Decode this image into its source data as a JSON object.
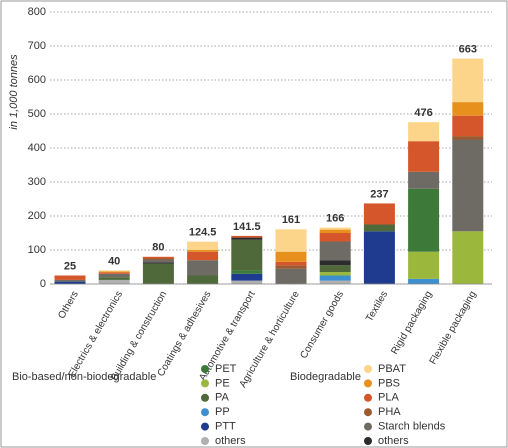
{
  "chart_data": {
    "type": "stacked-bar",
    "y_label": "in 1,000 tonnes",
    "categories": [
      "Others",
      "Electrics & electronics",
      "Building & construction",
      "Coatings & adhesives",
      "Automotive & transport",
      "Agriculture & horticulture",
      "Consumer goods",
      "Textiles",
      "Rigid packaging",
      "Flexible packaging"
    ],
    "totals": [
      25,
      40,
      80,
      124.5,
      141.5,
      161,
      166,
      237,
      476,
      663
    ],
    "ylim": [
      0,
      800
    ],
    "yticks": [
      0,
      100,
      200,
      300,
      400,
      500,
      600,
      700,
      800
    ],
    "grid": true,
    "legend_groups": [
      "Bio-based/non-biodegradable",
      "Biodegradable"
    ],
    "series": [
      {
        "name": "PET",
        "color": "#3d7a3a",
        "values": [
          0,
          0,
          0,
          0,
          10,
          0,
          0,
          0,
          185,
          0
        ]
      },
      {
        "name": "PE",
        "color": "#9bb83d",
        "values": [
          0,
          0,
          0,
          0,
          0,
          0,
          10,
          0,
          80,
          155
        ]
      },
      {
        "name": "PA",
        "color": "#50693a",
        "values": [
          0,
          8,
          60,
          25,
          90,
          0,
          20,
          20,
          0,
          0
        ]
      },
      {
        "name": "PP",
        "color": "#3d8fd0",
        "values": [
          0,
          0,
          0,
          0,
          0,
          0,
          15,
          0,
          15,
          0
        ]
      },
      {
        "name": "PTT",
        "color": "#1f3b8f",
        "values": [
          7,
          0,
          0,
          0,
          20,
          0,
          0,
          155,
          0,
          0
        ]
      },
      {
        "name": "others",
        "color": "#b0b0b0",
        "values": [
          0,
          12,
          0,
          0,
          10,
          0,
          10,
          0,
          0,
          0
        ]
      },
      {
        "name": "PBAT",
        "color": "#fdd58a",
        "values": [
          0,
          3,
          0,
          24.5,
          0,
          66,
          6,
          0,
          56,
          128
        ]
      },
      {
        "name": "PBS",
        "color": "#e8901e",
        "values": [
          0,
          3,
          0,
          5,
          0,
          30,
          10,
          0,
          0,
          40
        ]
      },
      {
        "name": "PLA",
        "color": "#d4562a",
        "values": [
          13,
          4,
          5,
          25,
          5,
          10,
          25,
          62,
          90,
          60
        ]
      },
      {
        "name": "PHA",
        "color": "#9c5a2e",
        "values": [
          0,
          0,
          3,
          0,
          0,
          10,
          0,
          0,
          0,
          10
        ]
      },
      {
        "name": "Starch blends",
        "color": "#6e6a64",
        "values": [
          5,
          10,
          8,
          45,
          0,
          45,
          55,
          0,
          50,
          270
        ]
      },
      {
        "name": "others",
        "color": "#2c2c2c",
        "values": [
          0,
          0,
          4,
          0,
          6.5,
          0,
          15,
          0,
          0,
          0
        ]
      }
    ]
  }
}
